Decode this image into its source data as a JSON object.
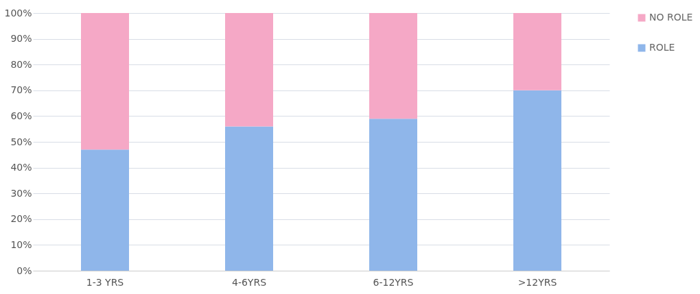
{
  "chart_data": {
    "type": "bar",
    "stacked": true,
    "categories": [
      "1-3 YRS",
      "4-6YRS",
      "6-12YRS",
      ">12YRS"
    ],
    "series": [
      {
        "name": "ROLE",
        "color": "#8fb6ea",
        "values": [
          47,
          56,
          59,
          70
        ]
      },
      {
        "name": "NO ROLE",
        "color": "#f5a8c6",
        "values": [
          53,
          44,
          41,
          30
        ]
      }
    ],
    "ylim": [
      0,
      100
    ],
    "yticks": [
      {
        "value": 0,
        "label": "0%"
      },
      {
        "value": 10,
        "label": "10%"
      },
      {
        "value": 20,
        "label": "20%"
      },
      {
        "value": 30,
        "label": "30%"
      },
      {
        "value": 40,
        "label": "40%"
      },
      {
        "value": 50,
        "label": "50%"
      },
      {
        "value": 60,
        "label": "60%"
      },
      {
        "value": 70,
        "label": "70%"
      },
      {
        "value": 80,
        "label": "80%"
      },
      {
        "value": 90,
        "label": "90%"
      },
      {
        "value": 100,
        "label": "100%"
      }
    ],
    "grid": "y",
    "legend": "right"
  }
}
